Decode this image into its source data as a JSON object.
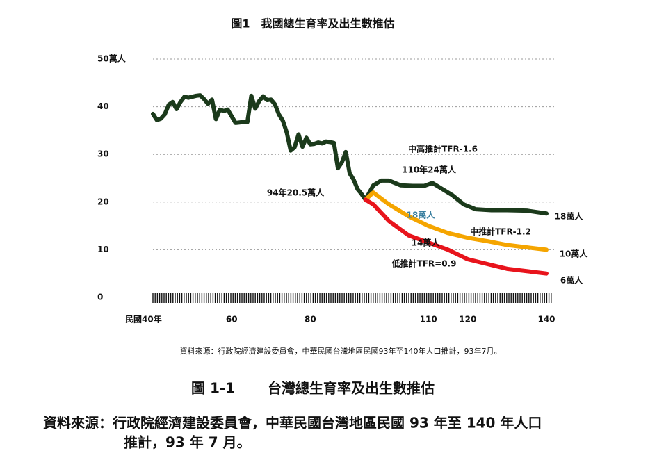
{
  "chart_data": {
    "type": "line",
    "title": "圖1　我國總生育率及出生數推估",
    "xlim": [
      40,
      140
    ],
    "xticks": [
      {
        "value": 40,
        "label": "民國40年"
      },
      60,
      80,
      110,
      120,
      140
    ],
    "ylim": [
      0,
      50
    ],
    "yticks": [
      0,
      10,
      20,
      30,
      40,
      {
        "value": 50,
        "label": "50萬人"
      }
    ],
    "grid": true,
    "series": [
      {
        "color": "#1b3a1b",
        "x": [
          40,
          41,
          42,
          43,
          44,
          45,
          46,
          47,
          48,
          49,
          50,
          51,
          52,
          53,
          54,
          55,
          56,
          57,
          58,
          59,
          60,
          61,
          62,
          63,
          64,
          65,
          66,
          67,
          68,
          69,
          70,
          71,
          72,
          73,
          74,
          75,
          76,
          77,
          78,
          79,
          80,
          81,
          82,
          83,
          84,
          85,
          86,
          87,
          88,
          89,
          90,
          91,
          92,
          93,
          94
        ],
        "values": [
          38.5,
          37.2,
          37.5,
          38.4,
          40.4,
          41.0,
          39.5,
          41.0,
          42.1,
          41.9,
          42.1,
          42.3,
          42.4,
          41.6,
          40.6,
          41.5,
          37.4,
          39.4,
          39.1,
          39.4,
          38.0,
          36.6,
          36.7,
          36.8,
          36.8,
          42.3,
          39.6,
          41.2,
          42.2,
          41.4,
          41.5,
          40.5,
          38.4,
          37.1,
          34.6,
          30.8,
          31.5,
          34.2,
          31.6,
          33.5,
          32.1,
          32.2,
          32.5,
          32.3,
          32.7,
          32.6,
          32.4,
          27.1,
          28.3,
          30.5,
          26.0,
          24.7,
          22.7,
          21.7,
          20.5
        ]
      },
      {
        "color": "#1b3a1b",
        "x": [
          94,
          96,
          98,
          100,
          103,
          106,
          109,
          111,
          113,
          116,
          119,
          122,
          126,
          130,
          135,
          140
        ],
        "values": [
          20.5,
          23.5,
          24.5,
          24.5,
          23.5,
          23.4,
          23.4,
          24,
          23,
          21.5,
          19.5,
          18.5,
          18.3,
          18.3,
          18.2,
          17.6
        ]
      },
      {
        "color": "#f5a500",
        "x": [
          94,
          96,
          100,
          105,
          110,
          115,
          120,
          125,
          130,
          135,
          140
        ],
        "values": [
          20.5,
          22,
          19.5,
          17,
          15,
          13.5,
          12.5,
          11.8,
          11,
          10.5,
          10
        ]
      },
      {
        "color": "#e8141c",
        "x": [
          94,
          96,
          100,
          105,
          110,
          115,
          120,
          125,
          130,
          135,
          140
        ],
        "values": [
          20.5,
          19.5,
          16,
          13,
          11.5,
          10,
          8,
          7,
          6,
          5.5,
          5
        ]
      }
    ],
    "annotations": [
      "中高推計TFR-1.6",
      "110年24萬人",
      "94年20.5萬人",
      "18萬人",
      "中推計TFR-1.2",
      "14萬人",
      "低推計TFR=0.9",
      "18萬人",
      "10萬人",
      "6萬人"
    ],
    "source_note": "資料來源：行政院經濟建設委員會，中華民國台灣地區民國93年至140年人口推計，93年7月。"
  },
  "caption": {
    "label": "圖 1-1",
    "title": "台灣總生育率及出生數推估",
    "source_line1": "資料來源：行政院經濟建設委員會，中華民國台灣地區民國 93 年至 140 年人口",
    "source_line2": "推計，93 年 7 月。"
  }
}
